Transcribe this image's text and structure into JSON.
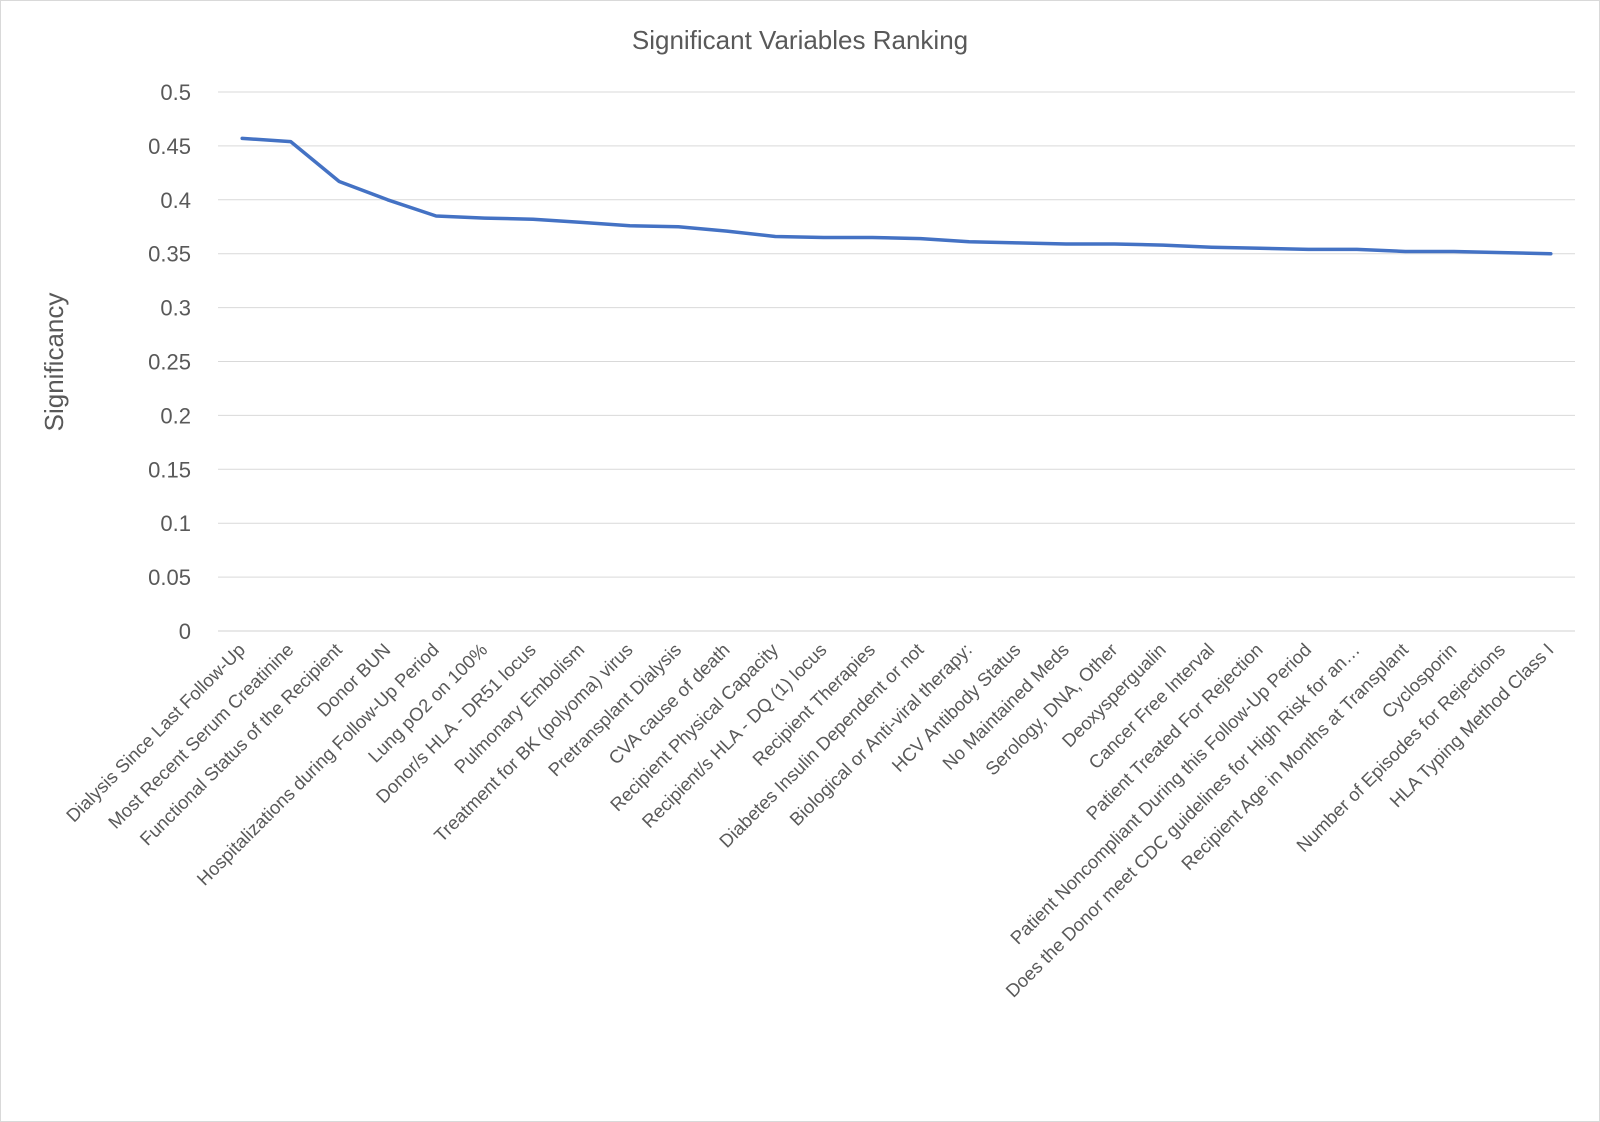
{
  "chart_data": {
    "type": "line",
    "title": "Significant Variables Ranking",
    "xlabel": "",
    "ylabel": "Significancy",
    "ylim": [
      0,
      0.5
    ],
    "yticks": [
      "0",
      "0.05",
      "0.1",
      "0.15",
      "0.2",
      "0.25",
      "0.3",
      "0.35",
      "0.4",
      "0.45",
      "0.5"
    ],
    "grid": true,
    "legend": "none",
    "color": "#4472c4",
    "categories": [
      "Dialysis Since Last Follow-Up",
      "Most Recent Serum Creatinine",
      "Functional Status of the Recipient",
      "Donor BUN",
      "Hospitalizations during Follow-Up Period",
      "Lung pO2 on 100%",
      "Donor/s HLA - DR51 locus",
      "Pulmonary Embolism",
      "Treatment for BK (polyoma) virus",
      "Pretransplant Dialysis",
      "CVA cause of death",
      "Recipient Physical Capacity",
      "Recipient/s HLA - DQ (1) locus",
      "Recipient Therapies",
      "Diabetes Insulin Dependent or not",
      "Biological or Anti-viral therapy:",
      "HCV Antibody Status",
      "No Maintained Meds",
      "Serology, DNA, Other",
      "Deoxyspergualin",
      "Cancer Free Interval",
      "Patient Treated For Rejection",
      "Patient Noncompliant During this Follow-Up Period",
      "Does the Donor meet CDC guidelines for High Risk for an…",
      "Recipient Age in Months at Transplant",
      "Cyclosporin",
      "Number of Episodes for Rejections",
      "HLA Typing Method Class I"
    ],
    "series": [
      {
        "values": [
          0.457,
          0.454,
          0.417,
          0.4,
          0.385,
          0.383,
          0.382,
          0.379,
          0.376,
          0.375,
          0.371,
          0.366,
          0.365,
          0.365,
          0.364,
          0.361,
          0.36,
          0.359,
          0.359,
          0.358,
          0.356,
          0.355,
          0.354,
          0.354,
          0.352,
          0.352,
          0.351,
          0.35
        ]
      }
    ]
  }
}
